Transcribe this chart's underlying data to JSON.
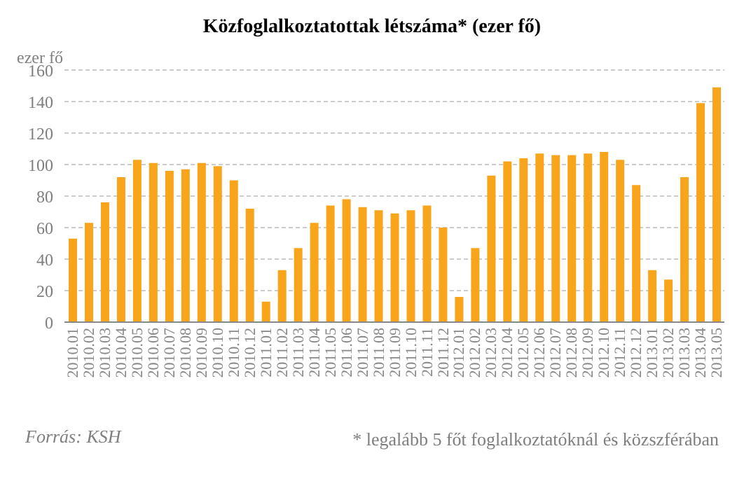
{
  "chart_data": {
    "type": "bar",
    "title": "Közfoglalkoztatottak létszáma* (ezer fő)",
    "ylabel": "ezer fő",
    "categories": [
      "2010.01",
      "2010.02",
      "2010.03",
      "2010.04",
      "2010.05",
      "2010.06",
      "2010.07",
      "2010.08",
      "2010.09",
      "2010.10",
      "2010.11",
      "2010.12",
      "2011.01",
      "2011.02",
      "2011.03",
      "2011.04",
      "2011.05",
      "2011.06",
      "2011.07",
      "2011.08",
      "2011.09",
      "2011.10",
      "2011.11",
      "2011.12",
      "2012.01",
      "2012.02",
      "2012.03",
      "2012.04",
      "2012.05",
      "2012.06",
      "2012.07",
      "2012.08",
      "2012.09",
      "2012.10",
      "2012.11",
      "2012.12",
      "2013.01",
      "2013.02",
      "2013.03",
      "2013.04",
      "2013.05"
    ],
    "values": [
      53,
      63,
      76,
      92,
      103,
      101,
      96,
      97,
      101,
      99,
      90,
      72,
      13,
      33,
      47,
      63,
      74,
      78,
      73,
      71,
      69,
      71,
      74,
      60,
      16,
      47,
      93,
      102,
      104,
      107,
      106,
      106,
      107,
      108,
      103,
      87,
      33,
      27,
      92,
      139,
      149
    ],
    "color": "#f9a51b",
    "ylim": [
      0,
      160
    ],
    "yticks": [
      0,
      20,
      40,
      60,
      80,
      100,
      120,
      140,
      160
    ],
    "grid": "y",
    "legend": false,
    "annotations": [
      "Forrás: KSH",
      "* legalább 5 főt foglalkoztatóknál és közszférában"
    ]
  }
}
